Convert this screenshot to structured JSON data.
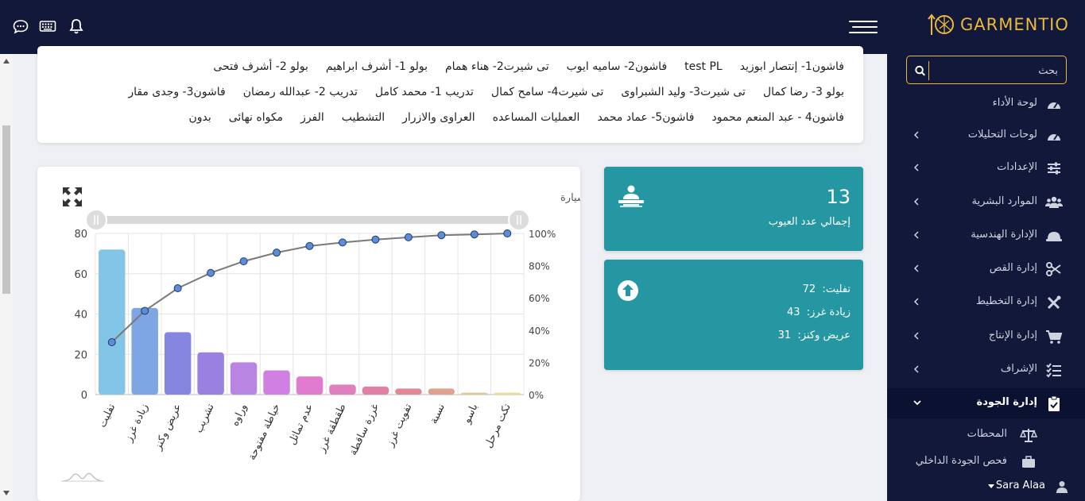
{
  "brand": {
    "name": "GARMENTIO"
  },
  "colors": {
    "navy": "#11183a",
    "gold": "#e8b93a",
    "teal": "#2597a3"
  },
  "topbar": {
    "icons": [
      "bell-icon",
      "keyboard-icon",
      "chat-icon"
    ]
  },
  "sidebar": {
    "search_placeholder": "بحث",
    "items": [
      {
        "label": "لوحة الأداء",
        "icon": "speedometer-icon",
        "has_children": false
      },
      {
        "label": "لوحات التحليلات",
        "icon": "speedometer-icon",
        "has_children": true
      },
      {
        "label": "الإعدادات",
        "icon": "sliders-icon",
        "has_children": true
      },
      {
        "label": "الموارد البشرية",
        "icon": "users-icon",
        "has_children": true
      },
      {
        "label": "الإدارة الهندسية",
        "icon": "helmet-icon",
        "has_children": true
      },
      {
        "label": "إدارة القص",
        "icon": "scissors-icon",
        "has_children": true
      },
      {
        "label": "إدارة التخطيط",
        "icon": "tools-icon",
        "has_children": true
      },
      {
        "label": "إدارة الإنتاج",
        "icon": "cart-icon",
        "has_children": true
      },
      {
        "label": "الإشراف",
        "icon": "checklist-icon",
        "has_children": true
      },
      {
        "label": "إدارة الجودة",
        "icon": "clipboard-check-icon",
        "has_children": true,
        "expanded": true
      }
    ],
    "sub_items": [
      {
        "label": "المحطات",
        "icon": "scale-icon"
      },
      {
        "label": "فحص الجودة الداخلي",
        "icon": "briefcase-icon"
      }
    ],
    "user": {
      "name": "Sara Alaa"
    }
  },
  "filters": {
    "rows": [
      [
        "فاشون1- إنتصار ابوزيد",
        "test PL",
        "فاشون2- ساميه ايوب",
        "تى شيرت2- هناء همام",
        "بولو 1- أشرف ابراهيم",
        "بولو 2- أشرف فتحى"
      ],
      [
        "بولو 3- رضا كمال",
        "تى شيرت3- وليد الشبراوى",
        "تى شيرت4- سامح كمال",
        "تدريب 1- محمد كامل",
        "تدريب 2- عبدالله رمضان",
        "فاشون3- وجدى مقار"
      ],
      [
        "فاشون4 - عبد المنعم محمود",
        "فاشون5- عماد محمد",
        "العمليات المساعده",
        "العراوى والازرار",
        "التشطيب",
        "الفرز",
        "مكواه نهائى",
        "بدون"
      ]
    ]
  },
  "summary": {
    "value": "13",
    "label": "إجمالي عدد العيوب",
    "icon": "inspector-icon"
  },
  "top_defects": {
    "icon": "arrow-up-circle-icon",
    "items": [
      {
        "name": "تفليت",
        "value": "72"
      },
      {
        "name": "زيادة غرز",
        "value": "43"
      },
      {
        "name": "عريض وكنز",
        "value": "31"
      }
    ]
  },
  "chart_data": {
    "type": "bar",
    "title": "تحليل عيوب الجودة السيارة",
    "categories": [
      "تفليت",
      "زيادة غرز",
      "عريض وكنز",
      "تشريب",
      "وراوه",
      "خياطة مفتوحة",
      "عدم تماثل",
      "طقطقة غرز",
      "غرزة ساقطة",
      "تفويت غرز",
      "نسبة",
      "باسو",
      "تكت مرحل"
    ],
    "series": [
      {
        "type": "bar",
        "values": [
          72,
          43,
          31,
          21,
          16,
          12,
          9,
          5,
          4,
          3,
          3,
          1,
          1
        ]
      },
      {
        "type": "line",
        "axis": "right",
        "values": [
          32.5,
          52,
          66,
          75.5,
          82.7,
          88.1,
          92.2,
          94.4,
          96.2,
          97.6,
          98.9,
          99.4,
          100
        ]
      }
    ],
    "bar_colors": [
      "#83c5e6",
      "#7ea6e3",
      "#8486e0",
      "#9a80e0",
      "#b985e3",
      "#d07fe2",
      "#e07bd0",
      "#e07fbf",
      "#e080a5",
      "#e38793",
      "#e0a08e",
      "#e6c890",
      "#eedc96"
    ],
    "y_left": {
      "min": 0,
      "max": 80,
      "ticks": [
        "0",
        "20",
        "40",
        "60",
        "80"
      ]
    },
    "y_right": {
      "min": 0,
      "max": 100,
      "ticks": [
        "0%",
        "20%",
        "40%",
        "60%",
        "80%",
        "100%"
      ]
    },
    "grid": true,
    "line_color": "#7a7a7a",
    "point_color": "#5b8ed6"
  }
}
